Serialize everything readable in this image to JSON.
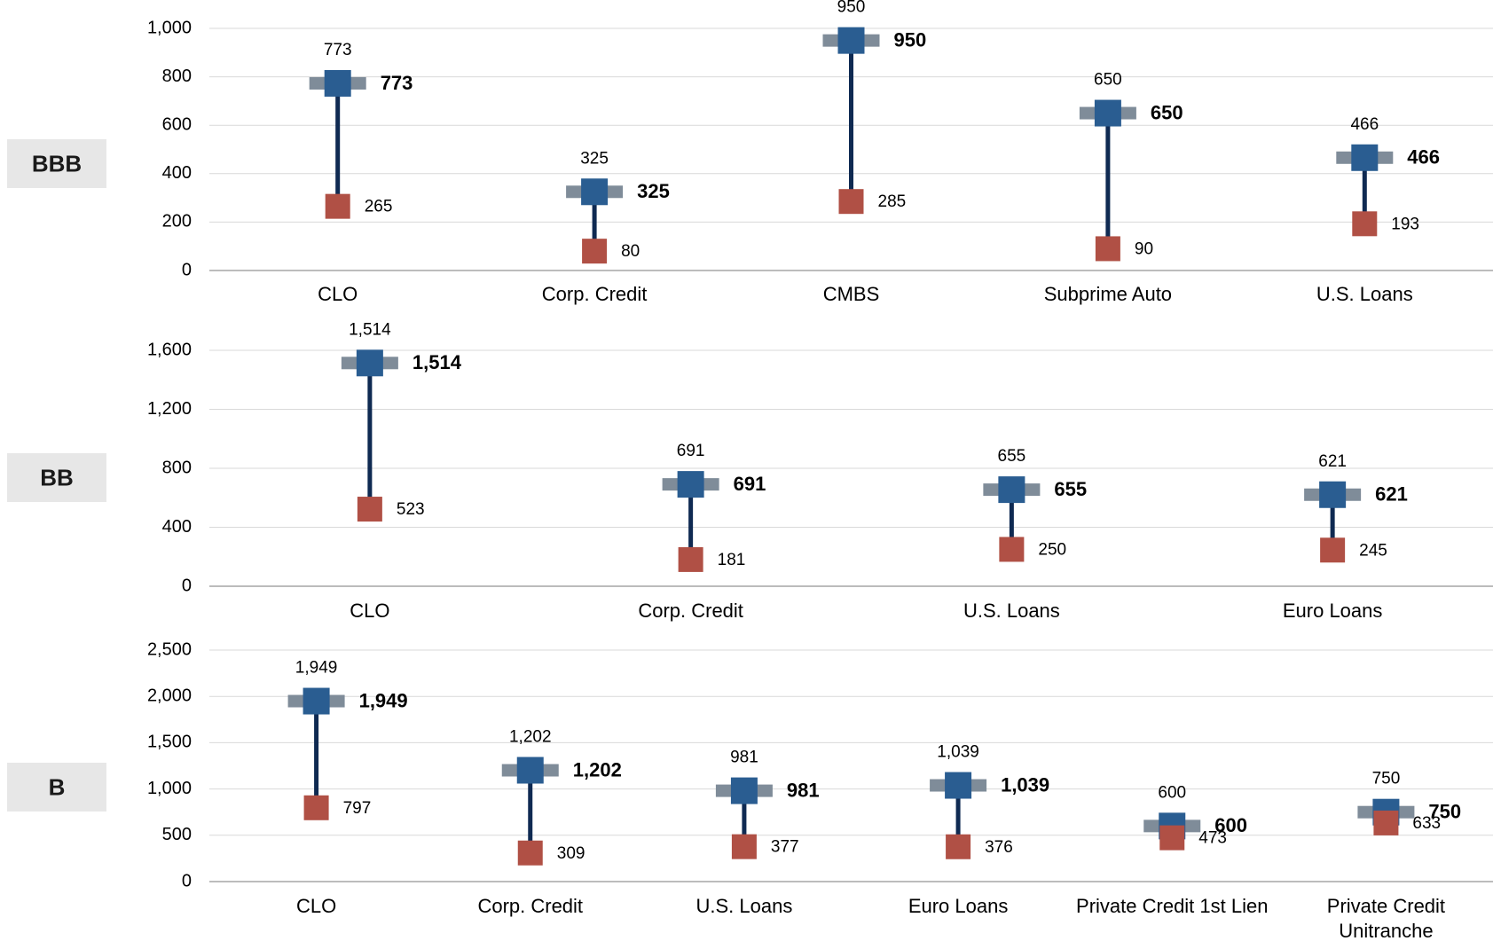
{
  "chart_data": [
    {
      "type": "range-dot",
      "rating": "BBB",
      "ylim": [
        0,
        1000
      ],
      "yticks": [
        0,
        200,
        400,
        600,
        800,
        1000
      ],
      "ytick_labels": [
        "0",
        "200",
        "400",
        "600",
        "800",
        "1,000"
      ],
      "colors": {
        "high": "#2a5d91",
        "low": "#b05045",
        "line": "#0f2a52",
        "cap": "#7f8c99"
      },
      "points": [
        {
          "category": "CLO",
          "high": 773,
          "high_label": "773",
          "low": 265,
          "low_label": "265"
        },
        {
          "category": "Corp. Credit",
          "high": 325,
          "high_label": "325",
          "low": 80,
          "low_label": "80"
        },
        {
          "category": "CMBS",
          "high": 950,
          "high_label": "950",
          "low": 285,
          "low_label": "285"
        },
        {
          "category": "Subprime Auto",
          "high": 650,
          "high_label": "650",
          "low": 90,
          "low_label": "90"
        },
        {
          "category": "U.S. Loans",
          "high": 466,
          "high_label": "466",
          "low": 193,
          "low_label": "193"
        }
      ]
    },
    {
      "type": "range-dot",
      "rating": "BB",
      "ylim": [
        0,
        1600
      ],
      "yticks": [
        0,
        400,
        800,
        1200,
        1600
      ],
      "ytick_labels": [
        "0",
        "400",
        "800",
        "1,200",
        "1,600"
      ],
      "colors": {
        "high": "#2a5d91",
        "low": "#b05045",
        "line": "#0f2a52",
        "cap": "#7f8c99"
      },
      "points": [
        {
          "category": "CLO",
          "high": 1514,
          "high_label": "1,514",
          "low": 523,
          "low_label": "523"
        },
        {
          "category": "Corp. Credit",
          "high": 691,
          "high_label": "691",
          "low": 181,
          "low_label": "181"
        },
        {
          "category": "U.S. Loans",
          "high": 655,
          "high_label": "655",
          "low": 250,
          "low_label": "250"
        },
        {
          "category": "Euro Loans",
          "high": 621,
          "high_label": "621",
          "low": 245,
          "low_label": "245"
        }
      ]
    },
    {
      "type": "range-dot",
      "rating": "B",
      "ylim": [
        0,
        2500
      ],
      "yticks": [
        0,
        500,
        1000,
        1500,
        2000,
        2500
      ],
      "ytick_labels": [
        "0",
        "500",
        "1,000",
        "1,500",
        "2,000",
        "2,500"
      ],
      "colors": {
        "high": "#2a5d91",
        "low": "#b05045",
        "line": "#0f2a52",
        "cap": "#7f8c99"
      },
      "points": [
        {
          "category": "CLO",
          "high": 1949,
          "high_label": "1,949",
          "low": 797,
          "low_label": "797"
        },
        {
          "category": "Corp. Credit",
          "high": 1202,
          "high_label": "1,202",
          "low": 309,
          "low_label": "309"
        },
        {
          "category": "U.S. Loans",
          "high": 981,
          "high_label": "981",
          "low": 377,
          "low_label": "377"
        },
        {
          "category": "Euro Loans",
          "high": 1039,
          "high_label": "1,039",
          "low": 376,
          "low_label": "376"
        },
        {
          "category": "Private Credit 1st Lien",
          "high": 600,
          "high_label": "600",
          "low": 473,
          "low_label": "473"
        },
        {
          "category": "Private Credit Unitranche",
          "category_lines": [
            "Private Credit",
            "Unitranche"
          ],
          "high": 750,
          "high_label": "750",
          "low": 633,
          "low_label": "633"
        }
      ]
    }
  ]
}
